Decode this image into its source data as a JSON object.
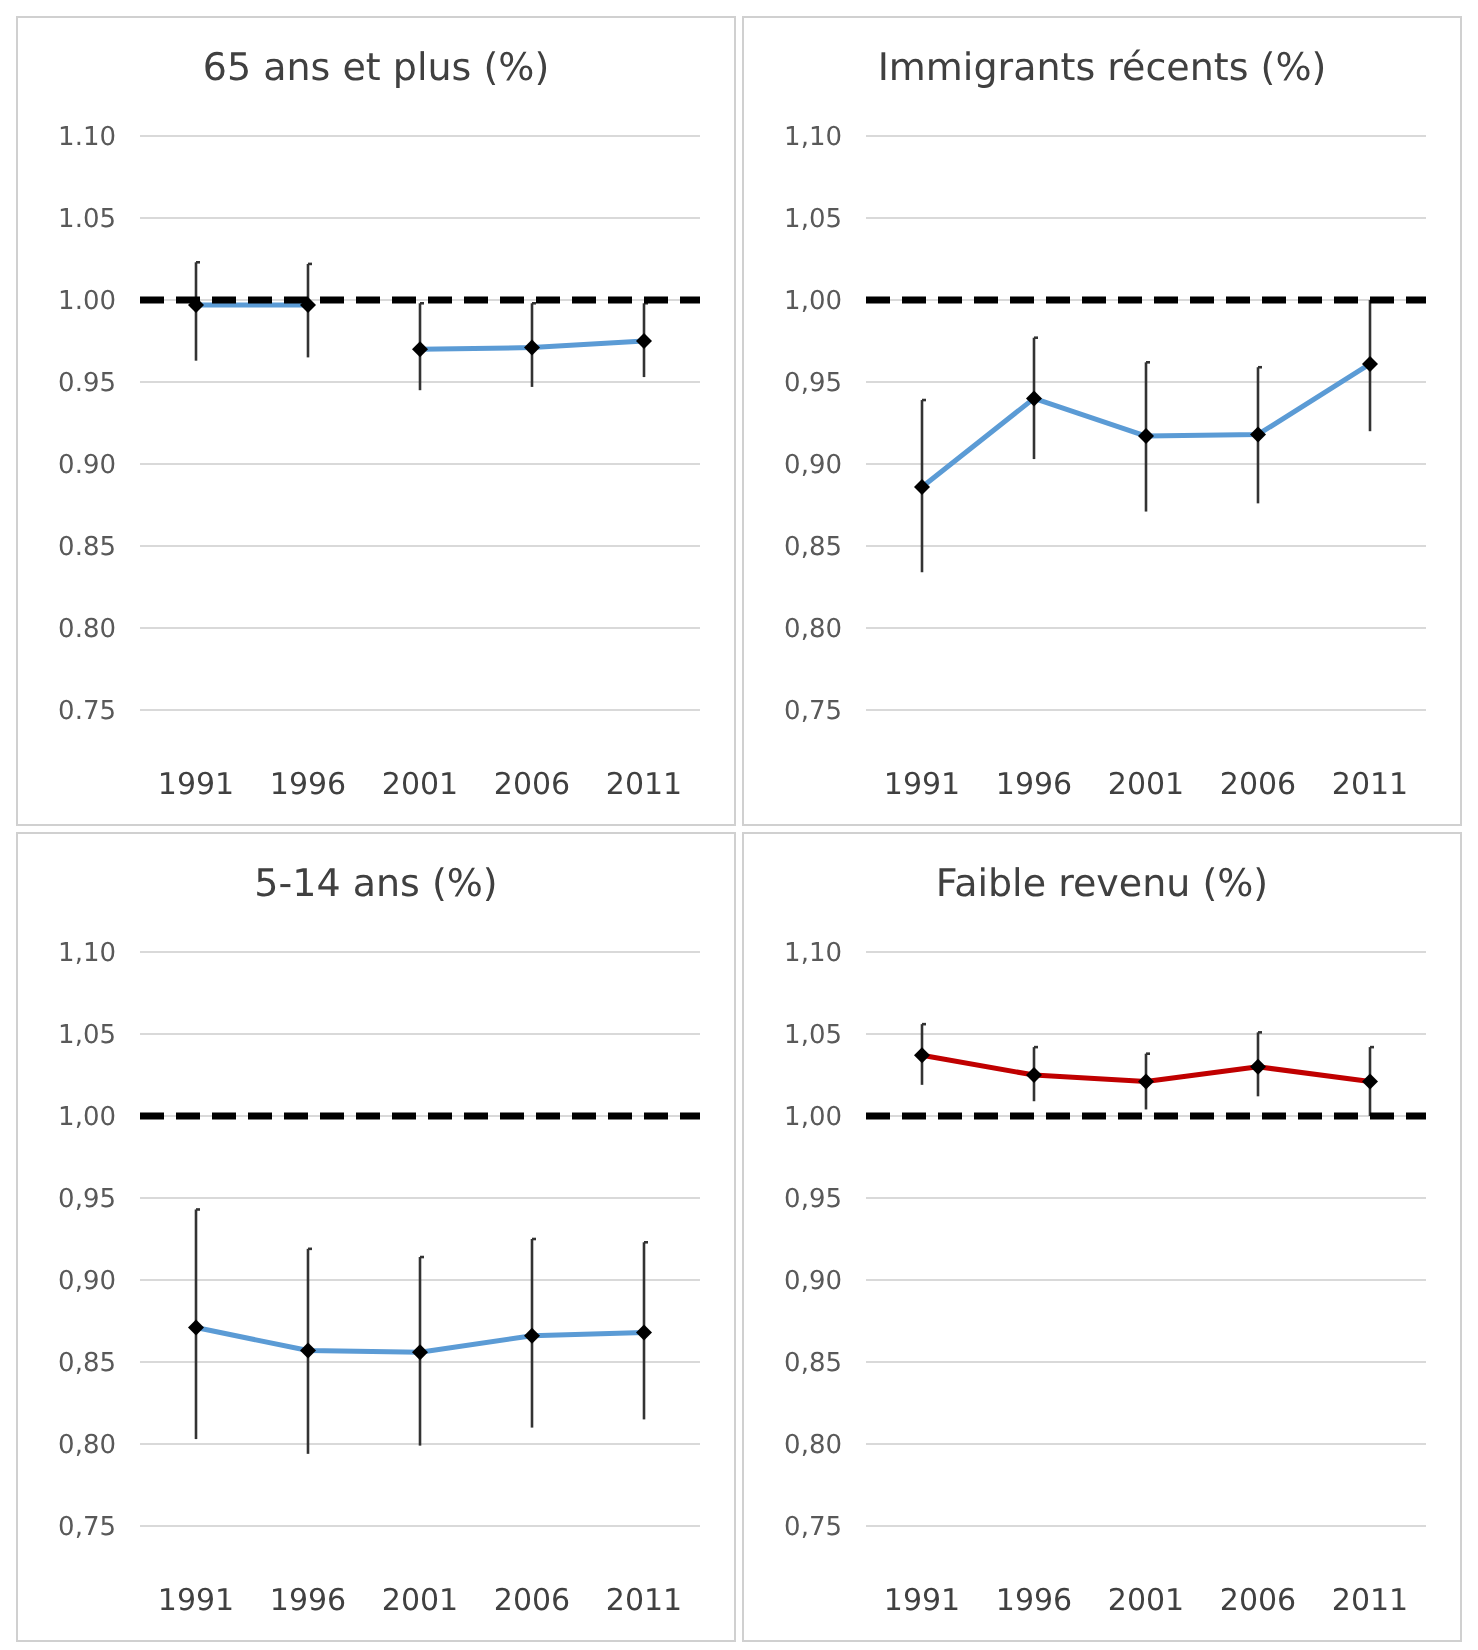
{
  "chart_data": [
    {
      "type": "line",
      "title": "65 ans et plus (%)",
      "categories": [
        "1991",
        "1996",
        "2001",
        "2006",
        "2011"
      ],
      "series": [
        {
          "color": "#5b9bd5",
          "values": [
            0.997,
            0.997,
            null,
            null,
            null
          ],
          "errors": [
            [
              0.963,
              1.023
            ],
            [
              0.965,
              1.022
            ],
            null,
            null,
            null
          ]
        },
        {
          "color": "#5b9bd5",
          "values": [
            null,
            null,
            0.97,
            0.971,
            0.975
          ],
          "errors": [
            null,
            null,
            [
              0.945,
              0.998
            ],
            [
              0.947,
              0.998
            ],
            [
              0.953,
              0.998
            ]
          ]
        }
      ],
      "ylim": [
        0.75,
        1.1
      ],
      "yticks": [
        {
          "value": 0.75,
          "label": "0.75"
        },
        {
          "value": 0.8,
          "label": "0.80"
        },
        {
          "value": 0.85,
          "label": "0.85"
        },
        {
          "value": 0.9,
          "label": "0.90"
        },
        {
          "value": 0.95,
          "label": "0.95"
        },
        {
          "value": 1.0,
          "label": "1.00"
        },
        {
          "value": 1.05,
          "label": "1.05"
        },
        {
          "value": 1.1,
          "label": "1.10"
        }
      ],
      "grid": "y",
      "marker": "diamond",
      "ref_lines": [
        {
          "axis": "y",
          "value": 1.0,
          "color": "#000000",
          "line_style": "dashed"
        }
      ]
    },
    {
      "type": "line",
      "title": "Immigrants récents (%)",
      "categories": [
        "1991",
        "1996",
        "2001",
        "2006",
        "2011"
      ],
      "series": [
        {
          "color": "#5b9bd5",
          "values": [
            0.886,
            0.94,
            0.917,
            0.918,
            0.961
          ],
          "errors": [
            [
              0.834,
              0.939
            ],
            [
              0.903,
              0.977
            ],
            [
              0.871,
              0.962
            ],
            [
              0.876,
              0.959
            ],
            [
              0.92,
              1.0
            ]
          ]
        }
      ],
      "ylim": [
        0.75,
        1.1
      ],
      "yticks": [
        {
          "value": 0.75,
          "label": "0,75"
        },
        {
          "value": 0.8,
          "label": "0,80"
        },
        {
          "value": 0.85,
          "label": "0,85"
        },
        {
          "value": 0.9,
          "label": "0,90"
        },
        {
          "value": 0.95,
          "label": "0,95"
        },
        {
          "value": 1.0,
          "label": "1,00"
        },
        {
          "value": 1.05,
          "label": "1,05"
        },
        {
          "value": 1.1,
          "label": "1,10"
        }
      ],
      "grid": "y",
      "marker": "diamond",
      "ref_lines": [
        {
          "axis": "y",
          "value": 1.0,
          "color": "#000000",
          "line_style": "dashed"
        }
      ]
    },
    {
      "type": "line",
      "title": "5-14 ans (%)",
      "categories": [
        "1991",
        "1996",
        "2001",
        "2006",
        "2011"
      ],
      "series": [
        {
          "color": "#5b9bd5",
          "values": [
            0.871,
            0.857,
            0.856,
            0.866,
            0.868
          ],
          "errors": [
            [
              0.803,
              0.943
            ],
            [
              0.794,
              0.919
            ],
            [
              0.799,
              0.914
            ],
            [
              0.81,
              0.925
            ],
            [
              0.815,
              0.923
            ]
          ]
        }
      ],
      "ylim": [
        0.75,
        1.1
      ],
      "yticks": [
        {
          "value": 0.75,
          "label": "0,75"
        },
        {
          "value": 0.8,
          "label": "0,80"
        },
        {
          "value": 0.85,
          "label": "0,85"
        },
        {
          "value": 0.9,
          "label": "0,90"
        },
        {
          "value": 0.95,
          "label": "0,95"
        },
        {
          "value": 1.0,
          "label": "1,00"
        },
        {
          "value": 1.05,
          "label": "1,05"
        },
        {
          "value": 1.1,
          "label": "1,10"
        }
      ],
      "grid": "y",
      "marker": "diamond",
      "ref_lines": [
        {
          "axis": "y",
          "value": 1.0,
          "color": "#000000",
          "line_style": "dashed"
        }
      ]
    },
    {
      "type": "line",
      "title": "Faible revenu (%)",
      "categories": [
        "1991",
        "1996",
        "2001",
        "2006",
        "2011"
      ],
      "series": [
        {
          "color": "#c00000",
          "values": [
            1.037,
            1.025,
            1.021,
            1.03,
            1.021
          ],
          "errors": [
            [
              1.019,
              1.056
            ],
            [
              1.009,
              1.042
            ],
            [
              1.004,
              1.038
            ],
            [
              1.012,
              1.051
            ],
            [
              1.0,
              1.042
            ]
          ]
        }
      ],
      "ylim": [
        0.75,
        1.1
      ],
      "yticks": [
        {
          "value": 0.75,
          "label": "0,75"
        },
        {
          "value": 0.8,
          "label": "0,80"
        },
        {
          "value": 0.85,
          "label": "0,85"
        },
        {
          "value": 0.9,
          "label": "0,90"
        },
        {
          "value": 0.95,
          "label": "0,95"
        },
        {
          "value": 1.0,
          "label": "1,00"
        },
        {
          "value": 1.05,
          "label": "1,05"
        },
        {
          "value": 1.1,
          "label": "1,10"
        }
      ],
      "grid": "y",
      "marker": "diamond",
      "ref_lines": [
        {
          "axis": "y",
          "value": 1.0,
          "color": "#000000",
          "line_style": "dashed"
        }
      ]
    }
  ]
}
